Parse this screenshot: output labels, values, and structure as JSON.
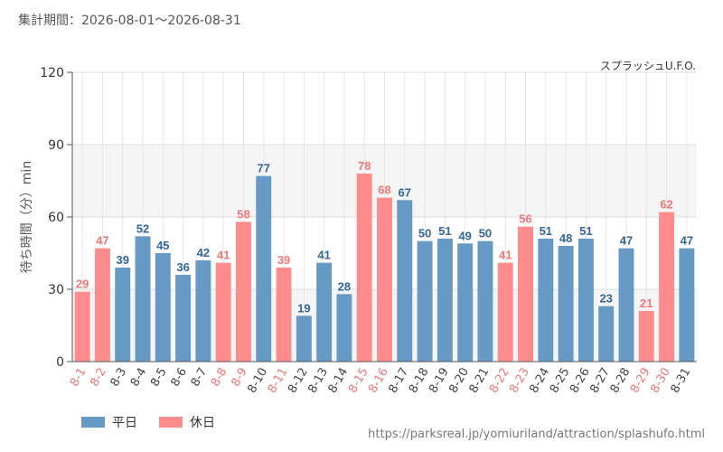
{
  "period_label": "集計期間：2026-08-01～2026-08-31",
  "source_url": "https://parksreal.jp/yomiuriland/attraction/splashufo.html",
  "chart_data": {
    "type": "bar",
    "title": "スプラッシュU.F.O.",
    "ylabel": "待ち時間（分）min",
    "xlabel": "",
    "ylim": [
      0,
      120
    ],
    "yticks": [
      0,
      30,
      60,
      90,
      120
    ],
    "categories": [
      "8-1",
      "8-2",
      "8-3",
      "8-4",
      "8-5",
      "8-6",
      "8-7",
      "8-8",
      "8-9",
      "8-10",
      "8-11",
      "8-12",
      "8-13",
      "8-14",
      "8-15",
      "8-16",
      "8-17",
      "8-18",
      "8-19",
      "8-20",
      "8-21",
      "8-22",
      "8-23",
      "8-24",
      "8-25",
      "8-26",
      "8-27",
      "8-28",
      "8-29",
      "8-30",
      "8-31"
    ],
    "values": [
      29,
      47,
      39,
      52,
      45,
      36,
      42,
      41,
      58,
      77,
      39,
      19,
      41,
      28,
      78,
      68,
      67,
      50,
      51,
      49,
      50,
      41,
      56,
      51,
      48,
      51,
      23,
      47,
      21,
      62,
      47
    ],
    "day_type": [
      "holiday",
      "holiday",
      "weekday",
      "weekday",
      "weekday",
      "weekday",
      "weekday",
      "holiday",
      "holiday",
      "weekday",
      "holiday",
      "weekday",
      "weekday",
      "weekday",
      "holiday",
      "holiday",
      "weekday",
      "weekday",
      "weekday",
      "weekday",
      "weekday",
      "holiday",
      "holiday",
      "weekday",
      "weekday",
      "weekday",
      "weekday",
      "weekday",
      "holiday",
      "holiday",
      "weekday"
    ],
    "legend": [
      {
        "key": "weekday",
        "name": "平日",
        "color": "#6699c4"
      },
      {
        "key": "holiday",
        "name": "休日",
        "color": "#ff8c8c"
      }
    ],
    "colors": {
      "weekday_label": "#336699",
      "holiday_label": "#ee7777",
      "weekday_tick": "#444444",
      "holiday_tick": "#ee7777"
    },
    "grid": true,
    "legend_position": "bottom-left"
  }
}
